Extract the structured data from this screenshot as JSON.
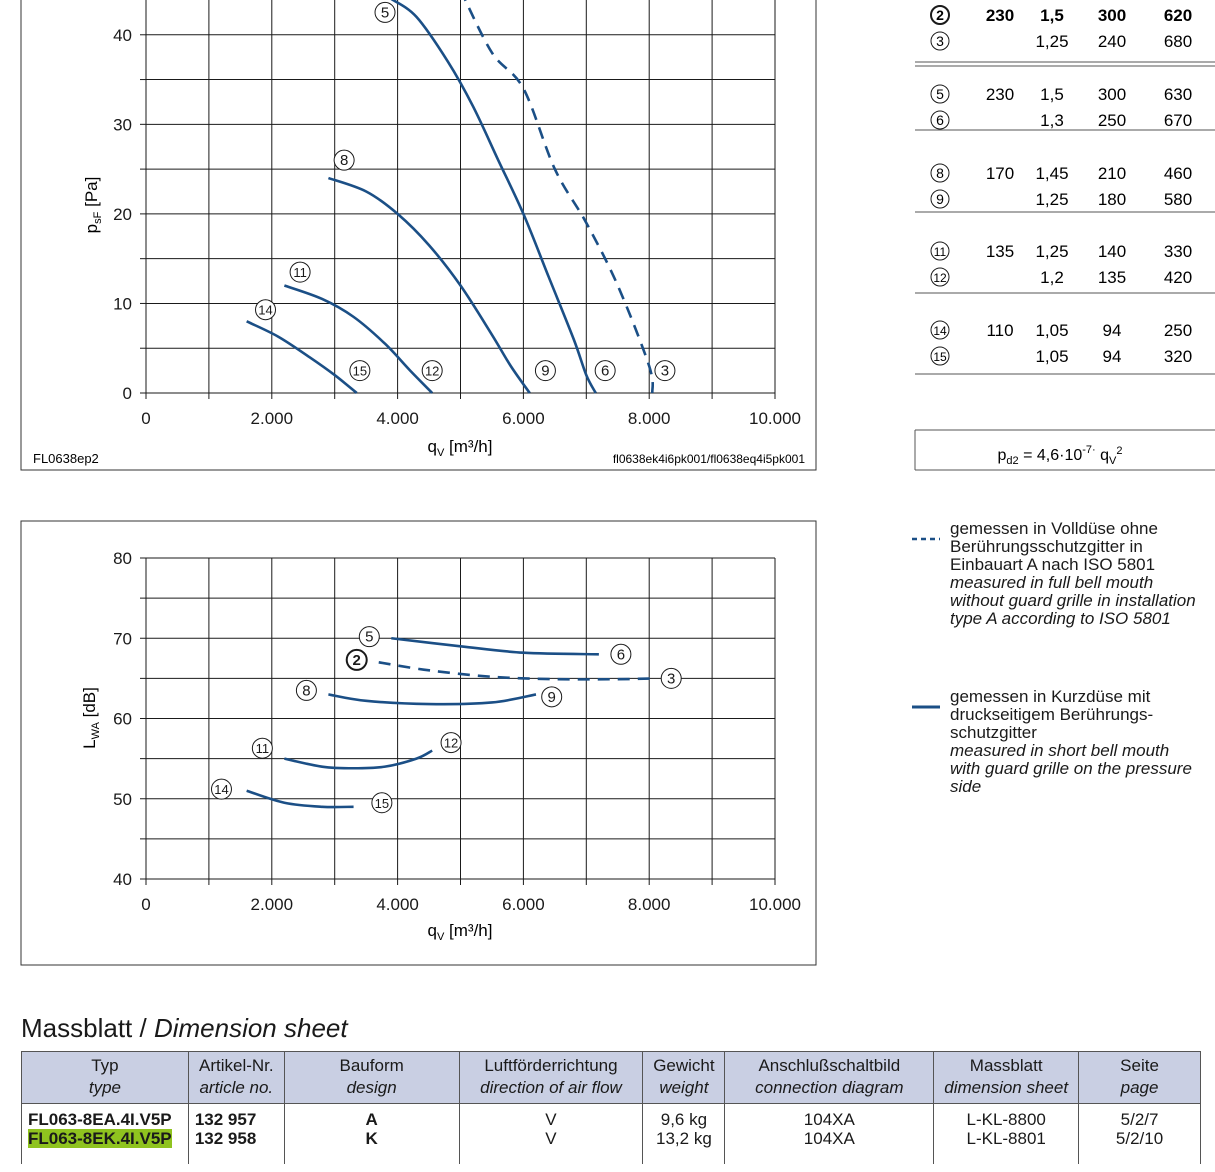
{
  "chart1": {
    "ylabel_main": "p",
    "ylabel_sub": "sF",
    "ylabel_unit": " [Pa]",
    "xlabel_main": "q",
    "xlabel_sub": "V",
    "xlabel_unit": " [m³/h]",
    "x_ticks": [
      "0",
      "2.000",
      "4.000",
      "6.000",
      "8.000",
      "10.000"
    ],
    "y_ticks": [
      "0",
      "10",
      "20",
      "30",
      "40"
    ],
    "note_left": "FL0638ep2",
    "note_right": "fl0638ek4i6pk001/fl0638eq4i5pk001"
  },
  "chart2": {
    "ylabel_main": "L",
    "ylabel_sub": "WA",
    "ylabel_unit": " [dB]",
    "xlabel_main": "q",
    "xlabel_sub": "V",
    "xlabel_unit": " [m³/h]",
    "x_ticks": [
      "0",
      "2.000",
      "4.000",
      "6.000",
      "8.000",
      "10.000"
    ],
    "y_ticks": [
      "40",
      "50",
      "60",
      "70",
      "80"
    ]
  },
  "chart_data": [
    {
      "type": "line",
      "xlabel": "qV [m³/h]",
      "ylabel": "psF [Pa]",
      "xlim": [
        0,
        10000
      ],
      "ylim": [
        0,
        45
      ],
      "grid": true,
      "series": [
        {
          "name": "2",
          "style": "dashed",
          "x": [
            5000,
            5500,
            6000,
            6500,
            7000,
            7500,
            8000,
            8050
          ],
          "y": [
            45,
            38,
            34,
            25,
            19,
            12,
            3,
            0
          ]
        },
        {
          "name": "5",
          "style": "solid",
          "x": [
            3900,
            4300,
            4800,
            5200,
            5600,
            6000,
            6400,
            6800,
            7000,
            7150
          ],
          "y": [
            44,
            42,
            37,
            32,
            26,
            20,
            13,
            6,
            2,
            0
          ]
        },
        {
          "name": "8",
          "style": "solid",
          "x": [
            2900,
            3500,
            4000,
            4500,
            5000,
            5500,
            5800,
            6100
          ],
          "y": [
            24,
            22.5,
            20,
            16.5,
            12,
            6.5,
            3,
            0
          ]
        },
        {
          "name": "11",
          "style": "solid",
          "x": [
            2200,
            2800,
            3300,
            3800,
            4200,
            4550
          ],
          "y": [
            12,
            10.5,
            8.5,
            5.5,
            2.5,
            0
          ]
        },
        {
          "name": "14",
          "style": "solid",
          "x": [
            1600,
            2100,
            2600,
            3000,
            3350
          ],
          "y": [
            8,
            6.3,
            4,
            2,
            0
          ]
        }
      ],
      "curve_markers": [
        {
          "label": "5",
          "x": 3800,
          "y": 42.5
        },
        {
          "label": "8",
          "x": 3150,
          "y": 26
        },
        {
          "label": "11",
          "x": 2450,
          "y": 13.5
        },
        {
          "label": "14",
          "x": 1900,
          "y": 9.3
        },
        {
          "label": "15",
          "x": 3400,
          "y": 2.5
        },
        {
          "label": "12",
          "x": 4550,
          "y": 2.5
        },
        {
          "label": "9",
          "x": 6350,
          "y": 2.5
        },
        {
          "label": "6",
          "x": 7300,
          "y": 2.5
        },
        {
          "label": "3",
          "x": 8250,
          "y": 2.5
        }
      ]
    },
    {
      "type": "line",
      "xlabel": "qV [m³/h]",
      "ylabel": "LWA [dB]",
      "xlim": [
        0,
        10000
      ],
      "ylim": [
        40,
        80
      ],
      "grid": true,
      "series": [
        {
          "name": "5-6",
          "style": "solid",
          "x": [
            3900,
            5000,
            6000,
            7200
          ],
          "y": [
            70,
            69,
            68.2,
            68
          ]
        },
        {
          "name": "2-3",
          "style": "dashed",
          "x": [
            3700,
            4500,
            5500,
            6500,
            7500,
            8100
          ],
          "y": [
            67,
            66,
            65.2,
            64.9,
            64.9,
            65
          ]
        },
        {
          "name": "8-9",
          "style": "solid",
          "x": [
            2900,
            3500,
            4500,
            5500,
            6200
          ],
          "y": [
            63,
            62.2,
            61.8,
            62,
            63
          ]
        },
        {
          "name": "11-12",
          "style": "solid",
          "x": [
            2200,
            2800,
            3300,
            3800,
            4300,
            4550
          ],
          "y": [
            55,
            54,
            53.8,
            54,
            55,
            56
          ]
        },
        {
          "name": "14-15",
          "style": "solid",
          "x": [
            1600,
            2200,
            2800,
            3300
          ],
          "y": [
            51,
            49.5,
            49,
            49
          ]
        }
      ],
      "curve_markers": [
        {
          "label": "5",
          "x": 3550,
          "y": 70.2
        },
        {
          "label": "6",
          "x": 7550,
          "y": 68
        },
        {
          "label": "2",
          "x": 3350,
          "y": 67.3,
          "bold": true
        },
        {
          "label": "3",
          "x": 8350,
          "y": 65
        },
        {
          "label": "8",
          "x": 2550,
          "y": 63.5
        },
        {
          "label": "9",
          "x": 6450,
          "y": 62.7
        },
        {
          "label": "11",
          "x": 1850,
          "y": 56.3
        },
        {
          "label": "12",
          "x": 4850,
          "y": 57
        },
        {
          "label": "14",
          "x": 1200,
          "y": 51.2
        },
        {
          "label": "15",
          "x": 3750,
          "y": 49.5
        }
      ]
    },
    {
      "type": "table",
      "rows": [
        {
          "mark": "2",
          "bold": true,
          "c1": "230",
          "c2": "1,5",
          "c3": "300",
          "c4": "620"
        },
        {
          "mark": "3",
          "c1": "",
          "c2": "1,25",
          "c3": "240",
          "c4": "680"
        },
        {
          "mark": "5",
          "c1": "230",
          "c2": "1,5",
          "c3": "300",
          "c4": "630"
        },
        {
          "mark": "6",
          "c1": "",
          "c2": "1,3",
          "c3": "250",
          "c4": "670"
        },
        {
          "mark": "8",
          "c1": "170",
          "c2": "1,45",
          "c3": "210",
          "c4": "460"
        },
        {
          "mark": "9",
          "c1": "",
          "c2": "1,25",
          "c3": "180",
          "c4": "580"
        },
        {
          "mark": "11",
          "c1": "135",
          "c2": "1,25",
          "c3": "140",
          "c4": "330"
        },
        {
          "mark": "12",
          "c1": "",
          "c2": "1,2",
          "c3": "135",
          "c4": "420"
        },
        {
          "mark": "14",
          "c1": "110",
          "c2": "1,05",
          "c3": "94",
          "c4": "250"
        },
        {
          "mark": "15",
          "c1": "",
          "c2": "1,05",
          "c3": "94",
          "c4": "320"
        }
      ],
      "formula": {
        "a": "p",
        "a_sub": "d2",
        "b": " = 4,6·10",
        "b_sup": "-7·",
        "c": " q",
        "c_sub": "V",
        "c_sup": "2"
      }
    }
  ],
  "colors": {
    "curve": "#1b4f86",
    "legend_line": "#1b4f86",
    "grid": "#1a1a1a",
    "header_bg": "#c9cfe3",
    "highlight": "#8fc31f"
  },
  "legend": {
    "dashed_de": "gemessen in Volldüse ohne Berührungsschutzgitter in Einbauart A nach ISO 5801",
    "dashed_en": "measured in full bell mouth without guard grille in installation type A according to ISO 5801",
    "solid_de": "gemessen in Kurzdüse mit druckseitigem Berührungs- schutzgitter",
    "solid_en": "measured in short bell mouth with guard grille on the pressure side"
  },
  "sheet": {
    "title": "Massblatt / ",
    "title_en": "Dimension sheet",
    "headers": [
      {
        "de": "Typ",
        "en": "type"
      },
      {
        "de": "Artikel-Nr.",
        "en": "article no."
      },
      {
        "de": "Bauform",
        "en": "design"
      },
      {
        "de": "Luftförderrichtung",
        "en": "direction of air flow"
      },
      {
        "de": "Gewicht",
        "en": "weight"
      },
      {
        "de": "Anschlußschaltbild",
        "en": "connection diagram"
      },
      {
        "de": "Massblatt",
        "en": "dimension sheet"
      },
      {
        "de": "Seite",
        "en": "page"
      }
    ],
    "rows": [
      {
        "type": "FL063-8EA.4I.V5P",
        "article": "132 957",
        "design": "A",
        "flow": "V",
        "weight": "9,6 kg",
        "diagram": "104XA",
        "dim": "L-KL-8800",
        "page": "5/2/7"
      },
      {
        "type": "FL063-8EK.4I.V5P",
        "article": "132 958",
        "design": "K",
        "flow": "V",
        "weight": "13,2 kg",
        "diagram": "104XA",
        "dim": "L-KL-8801",
        "page": "5/2/10"
      }
    ]
  }
}
